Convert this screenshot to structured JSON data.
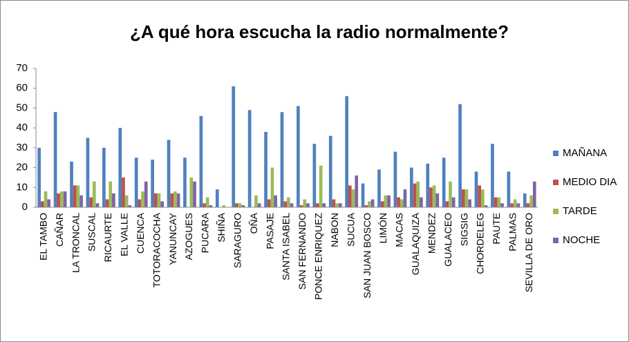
{
  "chart_data": {
    "type": "bar",
    "title": "¿A qué hora escucha la radio normalmente?",
    "categories": [
      "EL TAMBO",
      "CAÑAR",
      "LA TRONCAL",
      "SUSCAL",
      "RICAURTE",
      "EL VALLE",
      "CUENCA",
      "TOTORACOCHA",
      "YANUNCAY",
      "AZOGUES",
      "PUCARA",
      "SHIÑA",
      "SARAGURO",
      "OÑA",
      "PASAJE",
      "SANTA ISABEL",
      "SAN FERNANDO",
      "PONCE ENRIQUEZ",
      "NABON",
      "SUCUA",
      "SAN JUAN BOSCO",
      "LIMÓN",
      "MACAS",
      "GUALAQUIZA",
      "MENDEZ",
      "GUALACEO",
      "SIGSIG",
      "CHORDELEG",
      "PAUTE",
      "PALMAS",
      "SEVILLA DE ORO"
    ],
    "series": [
      {
        "name": "MAÑANA",
        "color": "#4f81bd",
        "values": [
          30,
          48,
          23,
          35,
          30,
          40,
          25,
          24,
          34,
          25,
          46,
          9,
          61,
          49,
          38,
          48,
          51,
          32,
          36,
          56,
          12,
          19,
          28,
          20,
          22,
          25,
          52,
          18,
          32,
          18,
          7
        ]
      },
      {
        "name": "MEDIO DIA",
        "color": "#c0504d",
        "values": [
          3,
          7,
          11,
          5,
          4,
          15,
          4,
          7,
          7,
          0,
          2,
          0,
          2,
          0,
          4,
          3,
          1,
          2,
          4,
          11,
          1,
          3,
          5,
          12,
          10,
          3,
          9,
          11,
          5,
          2,
          2
        ]
      },
      {
        "name": "TARDE",
        "color": "#9bbb59",
        "values": [
          8,
          8,
          11,
          13,
          13,
          6,
          8,
          7,
          8,
          15,
          5,
          1,
          2,
          6,
          20,
          5,
          4,
          21,
          2,
          9,
          3,
          6,
          4,
          13,
          11,
          13,
          9,
          9,
          5,
          4,
          6
        ]
      },
      {
        "name": "NOCHE",
        "color": "#8064a2",
        "values": [
          4,
          8,
          6,
          2,
          7,
          1,
          13,
          3,
          7,
          13,
          1,
          0,
          1,
          2,
          6,
          2,
          2,
          2,
          2,
          16,
          4,
          6,
          9,
          5,
          7,
          5,
          4,
          1,
          2,
          2,
          13
        ]
      }
    ],
    "ylim": [
      0,
      70
    ],
    "yticks": [
      0,
      10,
      20,
      30,
      40,
      50,
      60,
      70
    ],
    "grid": false,
    "legend": "right"
  }
}
